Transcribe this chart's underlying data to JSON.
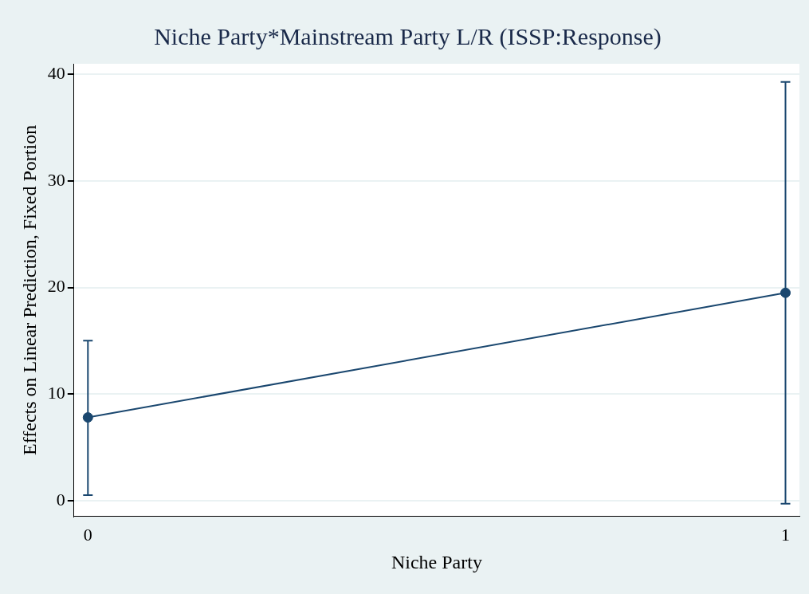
{
  "chart_data": {
    "type": "line",
    "title": "Niche Party*Mainstream Party L/R (ISSP:Response)",
    "xlabel": "Niche Party",
    "ylabel": "Effects on Linear Prediction, Fixed Portion",
    "x": [
      0,
      1
    ],
    "series": [
      {
        "color": "#1a476f",
        "values": [
          7.8,
          19.5
        ],
        "errors": [
          [
            0.5,
            15.0
          ],
          [
            -0.3,
            39.3
          ]
        ]
      }
    ],
    "xlim": [
      -0.02,
      1.02
    ],
    "xticks": [
      0,
      1
    ],
    "ylim": [
      -1.5,
      41
    ],
    "yticks": [
      0,
      10,
      20,
      30,
      40
    ],
    "grid": "y",
    "legend": false,
    "marker": "circle",
    "line_style": "solid"
  }
}
